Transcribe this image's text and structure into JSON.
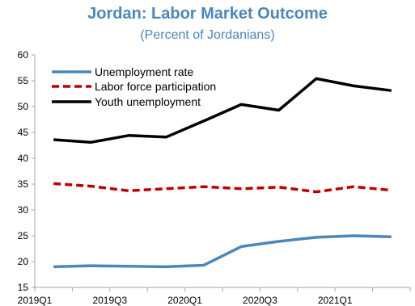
{
  "chart_data": {
    "type": "line",
    "title": "Jordan: Labor Market Outcome",
    "subtitle": "(Percent of Jordanians)",
    "x": [
      "2019Q1",
      "2019Q2",
      "2019Q3",
      "2019Q4",
      "2020Q1",
      "2020Q2",
      "2020Q3",
      "2020Q4",
      "2021Q1",
      "2021Q2"
    ],
    "x_tick_labels": [
      "2019Q1",
      "2019Q3",
      "2020Q1",
      "2020Q3",
      "2021Q1"
    ],
    "ylim": [
      15,
      60
    ],
    "y_ticks": [
      "15",
      "20",
      "25",
      "30",
      "35",
      "40",
      "45",
      "50",
      "55",
      "60"
    ],
    "grid": false,
    "legend_position": "top-left",
    "series": [
      {
        "name": "Unemployment rate",
        "color": "#4a87bd",
        "style": "solid",
        "values": [
          19.0,
          19.2,
          19.1,
          19.0,
          19.3,
          22.9,
          23.9,
          24.7,
          25.0,
          24.8
        ]
      },
      {
        "name": "Labor force participation",
        "color": "#c00000",
        "style": "dashed",
        "values": [
          35.1,
          34.6,
          33.7,
          34.1,
          34.5,
          34.1,
          34.4,
          33.5,
          34.5,
          33.8
        ]
      },
      {
        "name": "Youth unemployment",
        "color": "#000000",
        "style": "solid",
        "values": [
          43.6,
          43.1,
          44.4,
          44.1,
          47.2,
          50.4,
          49.3,
          55.4,
          54.0,
          53.1
        ]
      }
    ]
  }
}
